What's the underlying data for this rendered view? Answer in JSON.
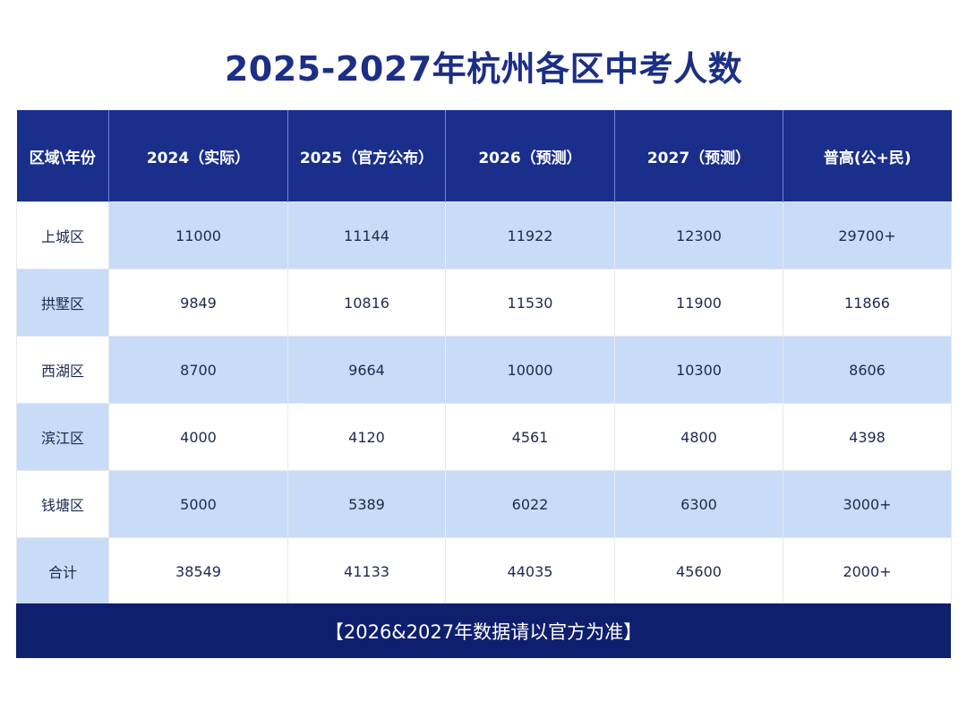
{
  "title": "2025-2027年杭州各区中考人数",
  "table": {
    "headers": [
      "区域\\年份",
      "2024（实际）",
      "2025（官方公布）",
      "2026（预测）",
      "2027（预测）",
      "普高(公+民)"
    ],
    "rows": [
      {
        "region": "上城区",
        "y2024": "11000",
        "y2025": "11144",
        "y2026": "11922",
        "y2027": "12300",
        "puGao": "29700+"
      },
      {
        "region": "拱墅区",
        "y2024": "9849",
        "y2025": "10816",
        "y2026": "11530",
        "y2027": "11900",
        "puGao": "11866"
      },
      {
        "region": "西湖区",
        "y2024": "8700",
        "y2025": "9664",
        "y2026": "10000",
        "y2027": "10300",
        "puGao": "8606"
      },
      {
        "region": "滨江区",
        "y2024": "4000",
        "y2025": "4120",
        "y2026": "4561",
        "y2027": "4800",
        "puGao": "4398"
      },
      {
        "region": "钱塘区",
        "y2024": "5000",
        "y2025": "5389",
        "y2026": "6022",
        "y2027": "6300",
        "puGao": "3000+"
      },
      {
        "region": "合计",
        "y2024": "38549",
        "y2025": "41133",
        "y2026": "44035",
        "y2027": "45600",
        "puGao": "2000+"
      }
    ]
  },
  "footer": "【2026&2027年数据请以官方为准】",
  "colors": {
    "title": "#1b2f85",
    "header_bg": "#1a2f8c",
    "footer_bg": "#0f1f6e",
    "stripe": "#c8dbf7"
  }
}
